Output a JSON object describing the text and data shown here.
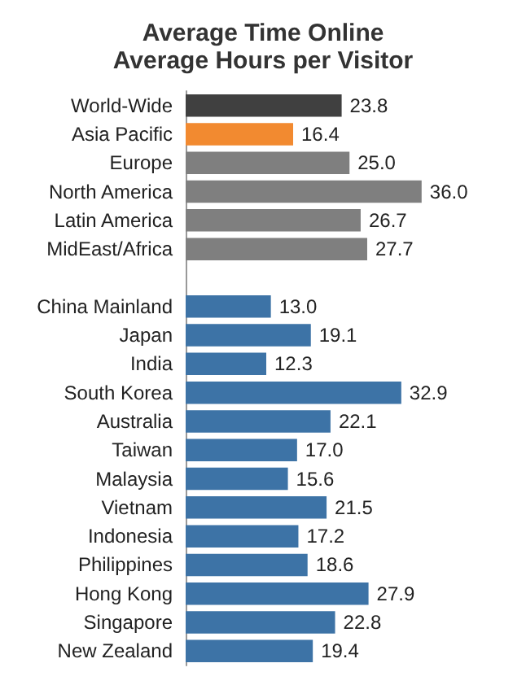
{
  "chart_data": {
    "type": "bar",
    "orientation": "horizontal",
    "title": "Average Time Online",
    "subtitle": "Average Hours per Visitor",
    "categories": [
      "World-Wide",
      "Asia Pacific",
      "Europe",
      "North America",
      "Latin America",
      "MidEast/Africa",
      null,
      "China Mainland",
      "Japan",
      "India",
      "South Korea",
      "Australia",
      "Taiwan",
      "Malaysia",
      "Vietnam",
      "Indonesia",
      "Philippines",
      "Hong Kong",
      "Singapore",
      "New Zealand"
    ],
    "values": [
      23.8,
      16.4,
      25.0,
      36.0,
      26.7,
      27.7,
      null,
      13.0,
      19.1,
      12.3,
      32.9,
      22.1,
      17.0,
      15.6,
      21.5,
      17.2,
      18.6,
      27.9,
      22.8,
      19.4
    ],
    "colors": [
      "#404040",
      "#f28a30",
      "#7f7f7f",
      "#7f7f7f",
      "#7f7f7f",
      "#7f7f7f",
      null,
      "#3d73a6",
      "#3d73a6",
      "#3d73a6",
      "#3d73a6",
      "#3d73a6",
      "#3d73a6",
      "#3d73a6",
      "#3d73a6",
      "#3d73a6",
      "#3d73a6",
      "#3d73a6",
      "#3d73a6",
      "#3d73a6"
    ],
    "value_labels": [
      "23.8",
      "16.4",
      "25.0",
      "36.0",
      "26.7",
      "27.7",
      null,
      "13.0",
      "19.1",
      "12.3",
      "32.9",
      "22.1",
      "17.0",
      "15.6",
      "21.5",
      "17.2",
      "18.6",
      "27.9",
      "22.8",
      "19.4"
    ]
  }
}
